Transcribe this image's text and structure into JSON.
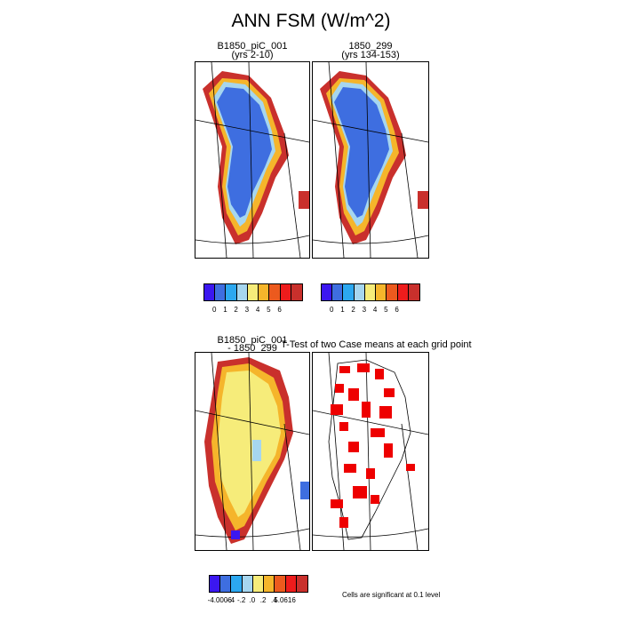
{
  "title": "ANN FSM (W/m^2)",
  "panels": {
    "p1": {
      "title": "B1850_piC_001",
      "subtitle": "(yrs 2-10)"
    },
    "p2": {
      "title": "1850_299",
      "subtitle": "(yrs 134-153)"
    },
    "p3": {
      "title": "B1850_piC_001",
      "subtitle": "- 1850_299"
    },
    "p4": {
      "title": "T-Test of two Case means at each grid point"
    }
  },
  "colorbar1": {
    "colors": [
      "#3b17f0",
      "#3e6ee0",
      "#2ca8f0",
      "#a6d6ef",
      "#f6ec7a",
      "#f5b52b",
      "#ec5a1e",
      "#ee1c1c",
      "#c9302c"
    ],
    "labels": [
      "0",
      "1",
      "2",
      "3",
      "4",
      "5",
      "6"
    ]
  },
  "colorbar2": {
    "colors": [
      "#3b17f0",
      "#3e6ee0",
      "#2ca8f0",
      "#a6d6ef",
      "#f6ec7a",
      "#f5b52b",
      "#ec5a1e",
      "#ee1c1c",
      "#c9302c"
    ],
    "labels": [
      "0",
      "1",
      "2",
      "3",
      "4",
      "5",
      "6"
    ]
  },
  "colorbar3": {
    "colors": [
      "#3b17f0",
      "#3e6ee0",
      "#2ca8f0",
      "#a6d6ef",
      "#f6ec7a",
      "#f5b52b",
      "#ec5a1e",
      "#ee1c1c",
      "#c9302c"
    ],
    "labels": [
      "-4.0006",
      "-.4",
      "-.2",
      ".0",
      ".2",
      ".4",
      "5.0616"
    ]
  },
  "note": "Cells are significant at 0.1 level",
  "chart_data": [
    {
      "type": "heatmap",
      "title": "B1850_piC_001",
      "subtitle": "(yrs 2-10)",
      "colorbar_levels": [
        0,
        1,
        2,
        3,
        4,
        5,
        6
      ],
      "interior_value": 0,
      "margin_values": "3-6"
    },
    {
      "type": "heatmap",
      "title": "1850_299",
      "subtitle": "(yrs 134-153)",
      "colorbar_levels": [
        0,
        1,
        2,
        3,
        4,
        5,
        6
      ],
      "interior_value": 0,
      "margin_values": "3-6"
    },
    {
      "type": "heatmap",
      "title": "B1850_piC_001",
      "subtitle": "- 1850_299",
      "colorbar_levels": [
        -4.0006,
        -0.4,
        -0.2,
        0,
        0.2,
        0.4,
        5.0616
      ]
    },
    {
      "type": "heatmap",
      "title": "T-Test of two Case means at each grid point",
      "note": "Cells are significant at 0.1 level"
    }
  ]
}
